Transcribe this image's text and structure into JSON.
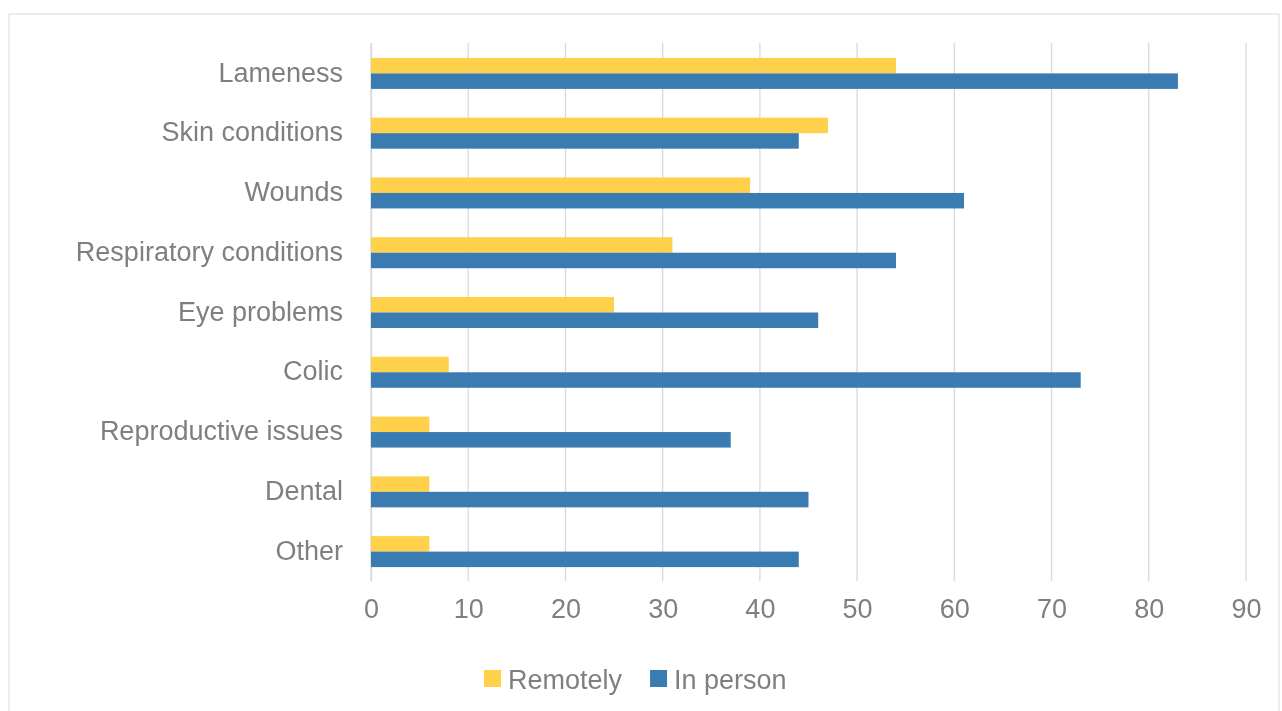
{
  "chart_data": {
    "type": "bar",
    "orientation": "horizontal",
    "categories": [
      "Lameness",
      "Skin conditions",
      "Wounds",
      "Respiratory conditions",
      "Eye problems",
      "Colic",
      "Reproductive issues",
      "Dental",
      "Other"
    ],
    "series": [
      {
        "name": "Remotely",
        "color": "#ffd04a",
        "values": [
          54,
          47,
          39,
          31,
          25,
          8,
          6,
          6,
          6
        ]
      },
      {
        "name": "In person",
        "color": "#3a7bb2",
        "values": [
          83,
          44,
          61,
          54,
          46,
          73,
          37,
          45,
          44
        ]
      }
    ],
    "xlim": [
      0,
      90
    ],
    "xticks": [
      0,
      10,
      20,
      30,
      40,
      50,
      60,
      70,
      80,
      90
    ],
    "grid": "x",
    "legend": "bottom"
  }
}
